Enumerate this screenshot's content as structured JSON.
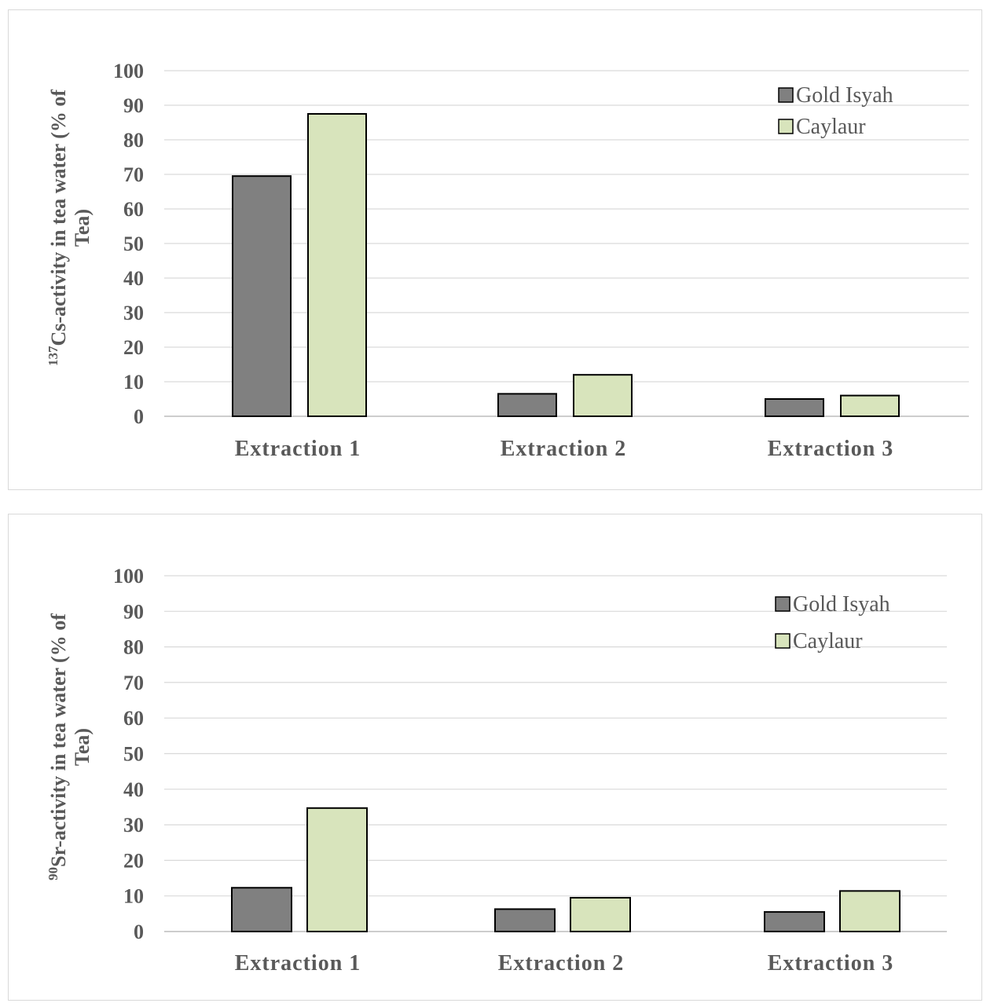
{
  "chart_data": [
    {
      "type": "bar",
      "categories": [
        "Extraction 1",
        "Extraction 2",
        "Extraction 3"
      ],
      "series": [
        {
          "name": "Gold Isyah",
          "values": [
            69.5,
            6.5,
            5.0
          ],
          "color": "#808080"
        },
        {
          "name": "Caylaur",
          "values": [
            87.5,
            12.0,
            6.0
          ],
          "color": "#d8e4bc"
        }
      ],
      "ylabel_sup": "137",
      "ylabel_line1": "Cs-activity in tea water (% of",
      "ylabel_line2": "Tea)",
      "ylim": [
        0,
        100
      ],
      "yticks": [
        0,
        10,
        20,
        30,
        40,
        50,
        60,
        70,
        80,
        90,
        100
      ],
      "grid": true,
      "legend_position": "top-right"
    },
    {
      "type": "bar",
      "categories": [
        "Extraction 1",
        "Extraction 2",
        "Extraction 3"
      ],
      "series": [
        {
          "name": "Gold Isyah",
          "values": [
            12.3,
            6.3,
            5.5
          ],
          "color": "#808080"
        },
        {
          "name": "Caylaur",
          "values": [
            34.7,
            9.5,
            11.4
          ],
          "color": "#d8e4bc"
        }
      ],
      "ylabel_sup": "90",
      "ylabel_line1": "Sr-activity in tea water (% of",
      "ylabel_line2": "Tea)",
      "ylim": [
        0,
        100
      ],
      "yticks": [
        0,
        10,
        20,
        30,
        40,
        50,
        60,
        70,
        80,
        90,
        100
      ],
      "grid": true,
      "legend_position": "top-right"
    }
  ]
}
